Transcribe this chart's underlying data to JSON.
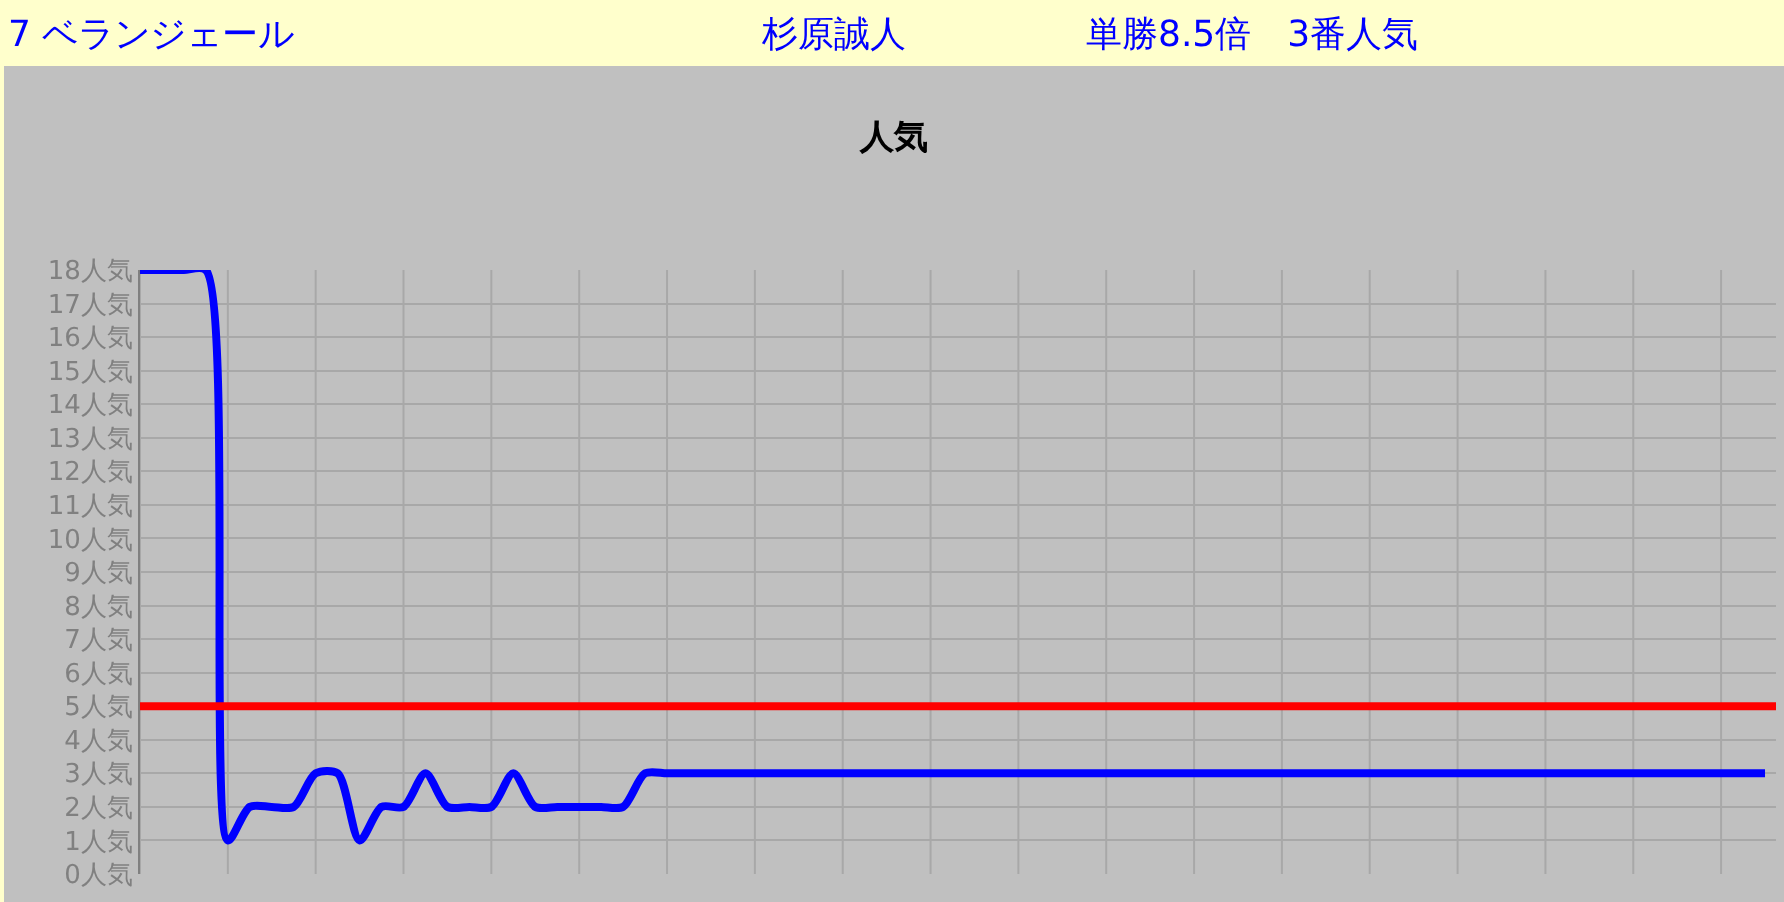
{
  "chart_data": {
    "type": "line",
    "title": "人気",
    "annotations": [
      "7 ベランジェール",
      "杉原誠人",
      "単勝8.5倍　3番人気"
    ],
    "categories": [
      null,
      null,
      null,
      null,
      null,
      null,
      null,
      null,
      null,
      null,
      null,
      null,
      null,
      null,
      null,
      null,
      null,
      null,
      null,
      null,
      null,
      null,
      null,
      null,
      null,
      null,
      null,
      null,
      null,
      null,
      null,
      null,
      null,
      null,
      null,
      null,
      null,
      null,
      null,
      null,
      null,
      null,
      null,
      null,
      null,
      null,
      null,
      null,
      null,
      null,
      null,
      null,
      null,
      null,
      null,
      null,
      null,
      null,
      null,
      null,
      null,
      null,
      null,
      null,
      null,
      null,
      null,
      null,
      null,
      null,
      null,
      null,
      null,
      null,
      null
    ],
    "series": [
      {
        "color": "#0000ff",
        "values": [
          18,
          18,
          18,
          18,
          1,
          2,
          2,
          2,
          3,
          3,
          1,
          2,
          2,
          3,
          2,
          2,
          2,
          3,
          2,
          2,
          2,
          2,
          2,
          3,
          3,
          3,
          3,
          3,
          3,
          3,
          3,
          3,
          3,
          3,
          3,
          3,
          3,
          3,
          3,
          3,
          3,
          3,
          3,
          3,
          3,
          3,
          3,
          3,
          3,
          3,
          3,
          3,
          3,
          3,
          3,
          3,
          3,
          3,
          3,
          3,
          3,
          3,
          3,
          3,
          3,
          3,
          3,
          3,
          3,
          3,
          3,
          3,
          3,
          3,
          3
        ]
      }
    ],
    "ylim": [
      0,
      18
    ],
    "yticks": [
      {
        "value": 0,
        "label": "0人気"
      },
      {
        "value": 1,
        "label": "1人気"
      },
      {
        "value": 2,
        "label": "2人気"
      },
      {
        "value": 3,
        "label": "3人気"
      },
      {
        "value": 4,
        "label": "4人気"
      },
      {
        "value": 5,
        "label": "5人気"
      },
      {
        "value": 6,
        "label": "6人気"
      },
      {
        "value": 7,
        "label": "7人気"
      },
      {
        "value": 8,
        "label": "8人気"
      },
      {
        "value": 9,
        "label": "9人気"
      },
      {
        "value": 10,
        "label": "10人気"
      },
      {
        "value": 11,
        "label": "11人気"
      },
      {
        "value": 12,
        "label": "12人気"
      },
      {
        "value": 13,
        "label": "13人気"
      },
      {
        "value": 14,
        "label": "14人気"
      },
      {
        "value": 15,
        "label": "15人気"
      },
      {
        "value": 16,
        "label": "16人気"
      },
      {
        "value": 17,
        "label": "17人気"
      },
      {
        "value": 18,
        "label": "18人気"
      }
    ],
    "ref_lines": [
      {
        "axis": "y",
        "value": 5,
        "color": "#ff0000",
        "line_style": "solid"
      }
    ],
    "grid": true,
    "marker": "none",
    "line_style": "solid",
    "tick_labels": "y"
  }
}
